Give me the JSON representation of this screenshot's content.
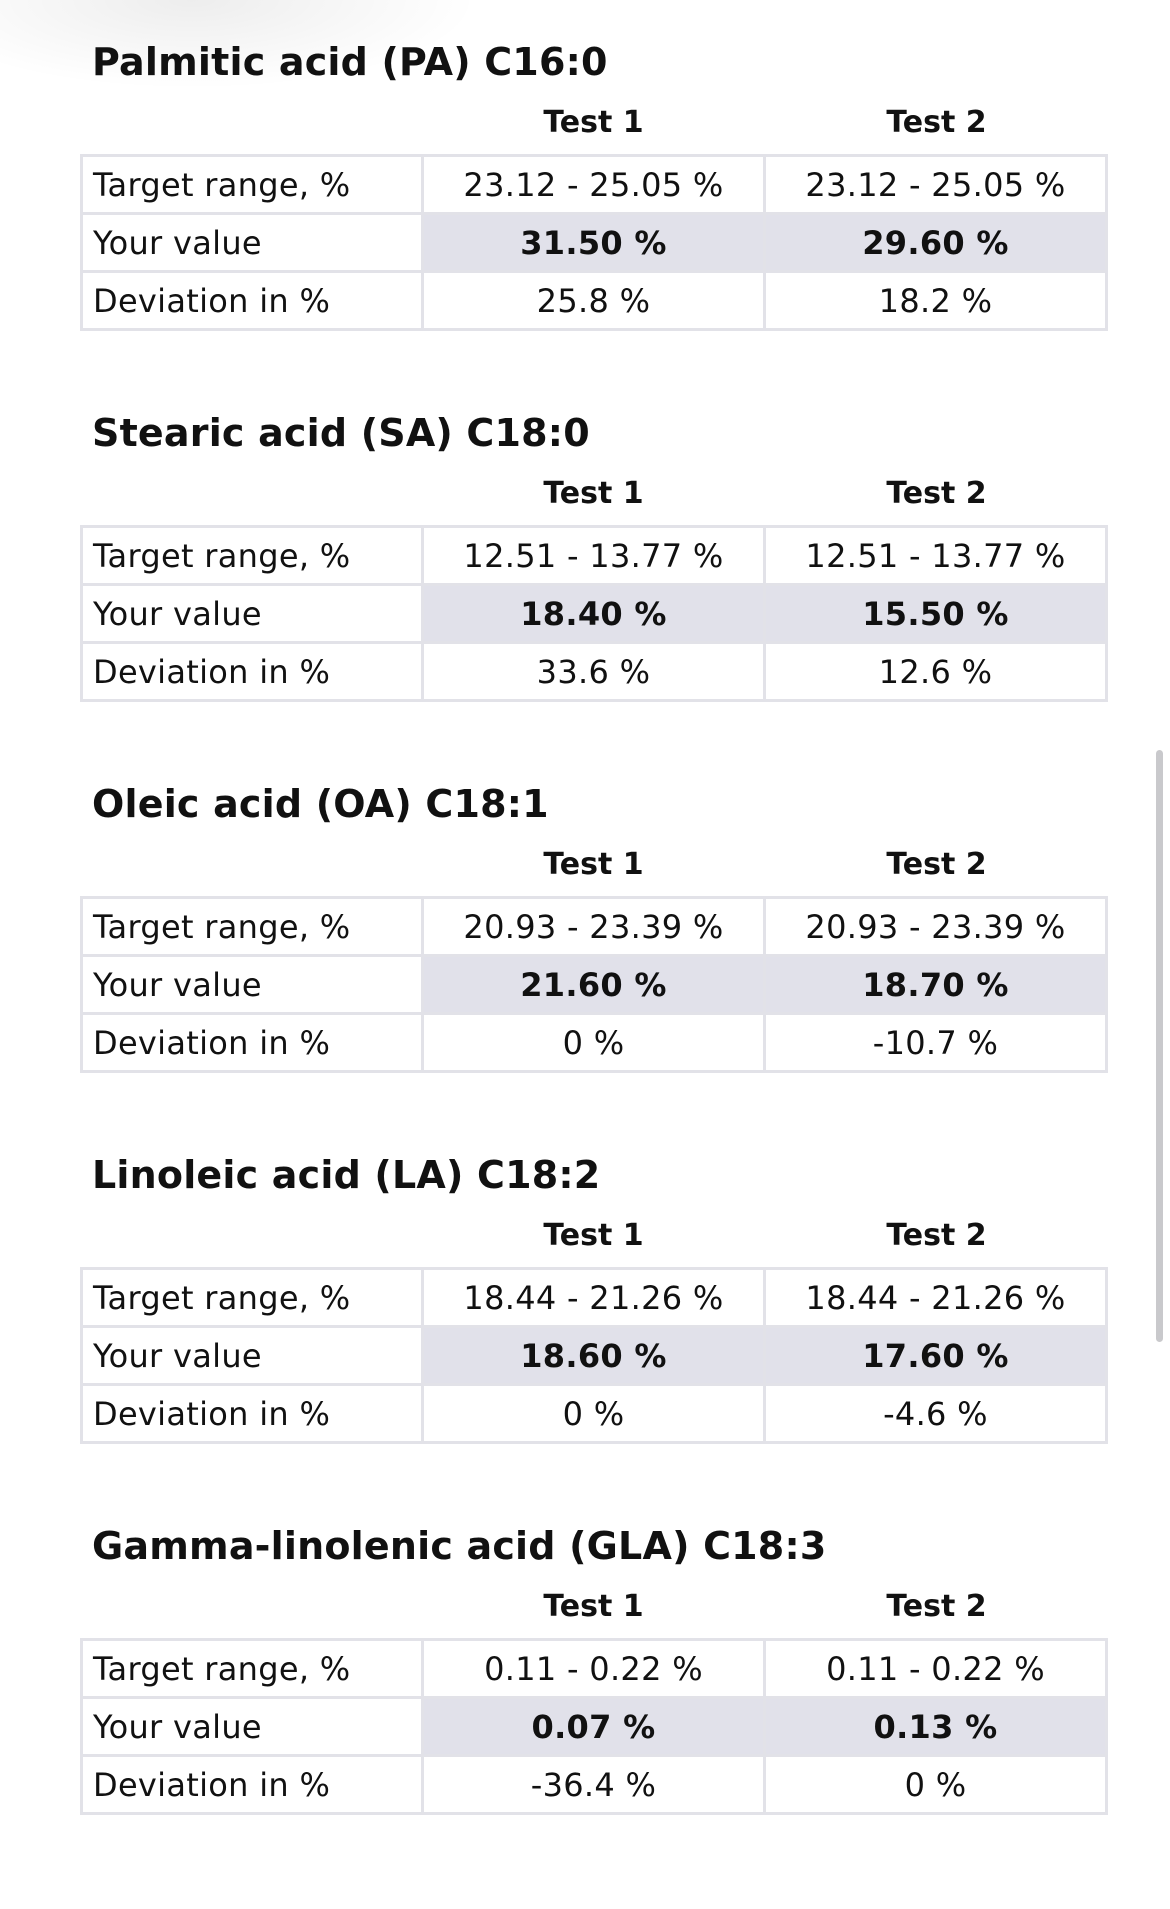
{
  "columns": [
    "Test 1",
    "Test 2"
  ],
  "row_labels": {
    "target": "Target range, %",
    "value": "Your value",
    "deviation": "Deviation in %"
  },
  "sections": [
    {
      "title": "Palmitic acid (PA) C16:0",
      "target": [
        "23.12 - 25.05 %",
        "23.12 - 25.05 %"
      ],
      "value": [
        "31.50 %",
        "29.60 %"
      ],
      "deviation": [
        "25.8 %",
        "18.2 %"
      ]
    },
    {
      "title": "Stearic acid (SA) C18:0",
      "target": [
        "12.51 - 13.77 %",
        "12.51 - 13.77 %"
      ],
      "value": [
        "18.40 %",
        "15.50 %"
      ],
      "deviation": [
        "33.6 %",
        "12.6 %"
      ]
    },
    {
      "title": "Oleic acid (OA) C18:1",
      "target": [
        "20.93 - 23.39 %",
        "20.93 - 23.39 %"
      ],
      "value": [
        "21.60 %",
        "18.70 %"
      ],
      "deviation": [
        "0 %",
        "-10.7 %"
      ]
    },
    {
      "title": "Linoleic acid (LA) C18:2",
      "target": [
        "18.44 - 21.26 %",
        "18.44 - 21.26 %"
      ],
      "value": [
        "18.60 %",
        "17.60 %"
      ],
      "deviation": [
        "0 %",
        "-4.6 %"
      ]
    },
    {
      "title": "Gamma-linolenic acid (GLA) C18:3",
      "target": [
        "0.11 - 0.22 %",
        "0.11 - 0.22 %"
      ],
      "value": [
        "0.07 %",
        "0.13 %"
      ],
      "deviation": [
        "-36.4 %",
        "0 %"
      ]
    }
  ]
}
